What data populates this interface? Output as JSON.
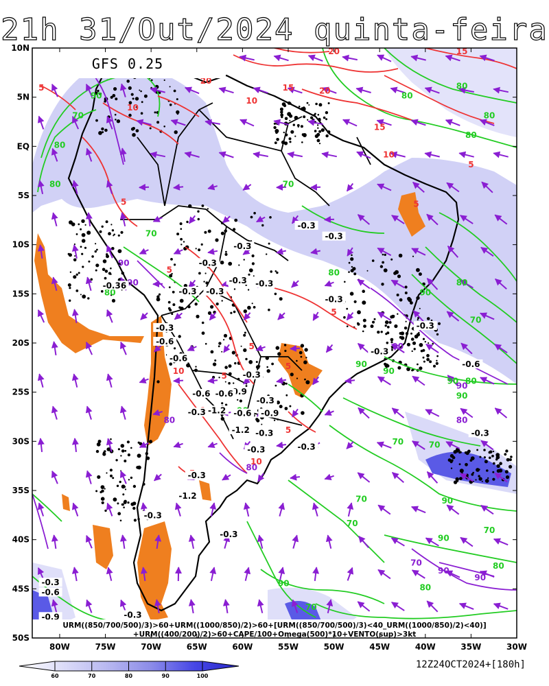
{
  "title": "21h 31/Out/2024 quinta-feira",
  "model_label": "GFS 0.25",
  "valid_stamp": "12Z24OCT2024+[180h]",
  "legend_line1": "URM((850/700/500)/3)>60+URM((1000/850)/2)>60+[URM((850/700/500)/3)<40_URM((1000/850)/2)<40)]",
  "legend_line2": "+URM((400/200)/2)>60+CAPE/100+Omega(500)*10+VENTO(sup)>3kt",
  "lat_ticks": [
    {
      "lat": 10,
      "label": "10N"
    },
    {
      "lat": 5,
      "label": "5N"
    },
    {
      "lat": 0,
      "label": "EQ"
    },
    {
      "lat": -5,
      "label": "5S"
    },
    {
      "lat": -10,
      "label": "10S"
    },
    {
      "lat": -15,
      "label": "15S"
    },
    {
      "lat": -20,
      "label": "20S"
    },
    {
      "lat": -25,
      "label": "25S"
    },
    {
      "lat": -30,
      "label": "30S"
    },
    {
      "lat": -35,
      "label": "35S"
    },
    {
      "lat": -40,
      "label": "40S"
    },
    {
      "lat": -45,
      "label": "45S"
    },
    {
      "lat": -50,
      "label": "50S"
    }
  ],
  "lon_ticks": [
    {
      "lon": -80,
      "label": "80W"
    },
    {
      "lon": -75,
      "label": "75W"
    },
    {
      "lon": -70,
      "label": "70W"
    },
    {
      "lon": -65,
      "label": "65W"
    },
    {
      "lon": -60,
      "label": "60W"
    },
    {
      "lon": -55,
      "label": "55W"
    },
    {
      "lon": -50,
      "label": "50W"
    },
    {
      "lon": -45,
      "label": "45W"
    },
    {
      "lon": -40,
      "label": "40W"
    },
    {
      "lon": -35,
      "label": "35W"
    },
    {
      "lon": -30,
      "label": "30W"
    }
  ],
  "colorbar": {
    "labels": [
      "60",
      "70",
      "80",
      "90",
      "100"
    ],
    "colors": [
      "#ffffff",
      "#dcdcf8",
      "#b8b8f0",
      "#8c8ce8",
      "#4646e6",
      "#2828c8"
    ]
  },
  "colors": {
    "land_outline": "#000000",
    "green_contour": "#22cc22",
    "red_contour": "#ee3333",
    "purple_vector": "#8a1ed2",
    "cape_orange": "#ef7f1f",
    "humidity_shade": "#c8c8f4"
  },
  "omega_labels": [
    {
      "lon": -53.0,
      "lat": -8.2,
      "text": "-0.3"
    },
    {
      "lon": -50.0,
      "lat": -9.3,
      "text": "-0.3"
    },
    {
      "lon": -60.0,
      "lat": -10.3,
      "text": "-0.3"
    },
    {
      "lon": -63.8,
      "lat": -12.0,
      "text": "-0.3"
    },
    {
      "lon": -60.5,
      "lat": -13.8,
      "text": "-0.3"
    },
    {
      "lon": -57.6,
      "lat": -14.1,
      "text": "-0.3"
    },
    {
      "lon": -74.0,
      "lat": -14.3,
      "text": "-0.36"
    },
    {
      "lon": -66.0,
      "lat": -14.9,
      "text": "-0.3"
    },
    {
      "lon": -63.0,
      "lat": -14.9,
      "text": "-0.3"
    },
    {
      "lon": -50.0,
      "lat": -15.7,
      "text": "-0.3"
    },
    {
      "lon": -40.0,
      "lat": -18.4,
      "text": "-0.3"
    },
    {
      "lon": -68.5,
      "lat": -18.6,
      "text": "-0.3"
    },
    {
      "lon": -68.5,
      "lat": -20.0,
      "text": "-0.6"
    },
    {
      "lon": -45.0,
      "lat": -21.0,
      "text": "-0.3"
    },
    {
      "lon": -67.0,
      "lat": -21.7,
      "text": "-0.6"
    },
    {
      "lon": -35.0,
      "lat": -22.3,
      "text": "-0.6"
    },
    {
      "lon": -59.0,
      "lat": -23.4,
      "text": "-0.3"
    },
    {
      "lon": -60.5,
      "lat": -25.1,
      "text": "-0.9"
    },
    {
      "lon": -64.5,
      "lat": -25.3,
      "text": "-0.6"
    },
    {
      "lon": -62.0,
      "lat": -25.3,
      "text": "-0.6"
    },
    {
      "lon": -57.5,
      "lat": -26.0,
      "text": "-0.3"
    },
    {
      "lon": -65.0,
      "lat": -27.2,
      "text": "-0.3"
    },
    {
      "lon": -62.8,
      "lat": -27.0,
      "text": "-1.2"
    },
    {
      "lon": -60.0,
      "lat": -27.3,
      "text": "-0.6"
    },
    {
      "lon": -57.0,
      "lat": -27.3,
      "text": "-0.9"
    },
    {
      "lon": -60.2,
      "lat": -29.0,
      "text": "-1.2"
    },
    {
      "lon": -57.6,
      "lat": -29.3,
      "text": "-0.3"
    },
    {
      "lon": -34.0,
      "lat": -29.3,
      "text": "-0.3"
    },
    {
      "lon": -53.0,
      "lat": -30.7,
      "text": "-0.3"
    },
    {
      "lon": -58.5,
      "lat": -31.0,
      "text": "-0.3"
    },
    {
      "lon": -65.0,
      "lat": -33.6,
      "text": "-0.3"
    },
    {
      "lon": -66.0,
      "lat": -35.7,
      "text": "-1.2"
    },
    {
      "lon": -69.8,
      "lat": -37.7,
      "text": "-0.3"
    },
    {
      "lon": -61.5,
      "lat": -39.6,
      "text": "-0.3"
    },
    {
      "lon": -81.0,
      "lat": -44.5,
      "text": "-0.3"
    },
    {
      "lon": -81.0,
      "lat": -45.5,
      "text": "-0.6"
    },
    {
      "lon": -81.0,
      "lat": -48.0,
      "text": "-0.9"
    },
    {
      "lon": -72.0,
      "lat": -47.8,
      "text": "-0.3"
    }
  ],
  "green_labels": [
    {
      "lon": -80,
      "lat": 0,
      "text": "80"
    },
    {
      "lon": -78,
      "lat": 3,
      "text": "70"
    },
    {
      "lon": -76,
      "lat": 5,
      "text": "90"
    },
    {
      "lon": -80.5,
      "lat": -4,
      "text": "80"
    },
    {
      "lon": -70,
      "lat": -9,
      "text": "70"
    },
    {
      "lon": -74.5,
      "lat": -15,
      "text": "80"
    },
    {
      "lon": -55,
      "lat": -4,
      "text": "70"
    },
    {
      "lon": -50,
      "lat": -13,
      "text": "80"
    },
    {
      "lon": -36,
      "lat": -14,
      "text": "80"
    },
    {
      "lon": -40,
      "lat": -15,
      "text": "90"
    },
    {
      "lon": -34.5,
      "lat": -17.8,
      "text": "70"
    },
    {
      "lon": -44,
      "lat": -23,
      "text": "90"
    },
    {
      "lon": -47,
      "lat": -22.3,
      "text": "90"
    },
    {
      "lon": -37,
      "lat": -24,
      "text": "90"
    },
    {
      "lon": -35,
      "lat": -24,
      "text": "80"
    },
    {
      "lon": -36,
      "lat": -25.5,
      "text": "90"
    },
    {
      "lon": -39,
      "lat": -30.5,
      "text": "70"
    },
    {
      "lon": -37.6,
      "lat": -36.2,
      "text": "90"
    },
    {
      "lon": -47,
      "lat": -36,
      "text": "70"
    },
    {
      "lon": -33,
      "lat": -39.2,
      "text": "70"
    },
    {
      "lon": -48,
      "lat": -38.5,
      "text": "70"
    },
    {
      "lon": -32,
      "lat": -42.8,
      "text": "80"
    },
    {
      "lon": -40,
      "lat": -45,
      "text": "80"
    },
    {
      "lon": -55.5,
      "lat": -44.6,
      "text": "90"
    },
    {
      "lon": -52.5,
      "lat": -47,
      "text": "70"
    },
    {
      "lon": -38,
      "lat": -40,
      "text": "90"
    },
    {
      "lon": -43,
      "lat": -30.2,
      "text": "70"
    },
    {
      "lon": -42,
      "lat": 5,
      "text": "80"
    },
    {
      "lon": -35,
      "lat": 1,
      "text": "80"
    },
    {
      "lon": -36,
      "lat": 6,
      "text": "80"
    },
    {
      "lon": -33,
      "lat": 3,
      "text": "80"
    },
    {
      "lon": -60,
      "lat": -27,
      "text": "90"
    }
  ],
  "red_labels": [
    {
      "lon": -50,
      "lat": 9.5,
      "text": "20"
    },
    {
      "lon": -36,
      "lat": 9.5,
      "text": "15"
    },
    {
      "lon": -64,
      "lat": 6.5,
      "text": "20"
    },
    {
      "lon": -51,
      "lat": 5.5,
      "text": "20"
    },
    {
      "lon": -55,
      "lat": 5.8,
      "text": "15"
    },
    {
      "lon": -82,
      "lat": 5.8,
      "text": "5"
    },
    {
      "lon": -59,
      "lat": 4.5,
      "text": "10"
    },
    {
      "lon": -72,
      "lat": 3.8,
      "text": "10"
    },
    {
      "lon": -45,
      "lat": 1.8,
      "text": "15"
    },
    {
      "lon": -44,
      "lat": -1,
      "text": "10"
    },
    {
      "lon": -73,
      "lat": -5.8,
      "text": "5"
    },
    {
      "lon": -68,
      "lat": -12.7,
      "text": "5"
    },
    {
      "lon": -57,
      "lat": -14.1,
      "text": "5"
    },
    {
      "lon": -50,
      "lat": -17,
      "text": "5"
    },
    {
      "lon": -59,
      "lat": -20.5,
      "text": "5"
    },
    {
      "lon": -67,
      "lat": -23,
      "text": "10"
    },
    {
      "lon": -62,
      "lat": -23.5,
      "text": "5"
    },
    {
      "lon": -64,
      "lat": -27,
      "text": "10"
    },
    {
      "lon": -55,
      "lat": -29,
      "text": "5"
    },
    {
      "lon": -58.5,
      "lat": -32.2,
      "text": "10"
    },
    {
      "lon": -65.5,
      "lat": -33.4,
      "text": "5"
    },
    {
      "lon": -35,
      "lat": -2,
      "text": "5"
    },
    {
      "lon": -55,
      "lat": -22.5,
      "text": "5"
    },
    {
      "lon": -41,
      "lat": -6,
      "text": "5"
    }
  ],
  "purple_labels": [
    {
      "lon": -72,
      "lat": -14,
      "text": "90"
    },
    {
      "lon": -43,
      "lat": -20.5,
      "text": "90"
    },
    {
      "lon": -36,
      "lat": -24.5,
      "text": "90"
    },
    {
      "lon": -36,
      "lat": -28,
      "text": "80"
    },
    {
      "lon": -41,
      "lat": -42.5,
      "text": "70"
    },
    {
      "lon": -38,
      "lat": -43.3,
      "text": "90"
    },
    {
      "lon": -34,
      "lat": -44,
      "text": "90"
    },
    {
      "lon": -59,
      "lat": -32.8,
      "text": "80"
    },
    {
      "lon": -68,
      "lat": -28,
      "text": "80"
    },
    {
      "lon": -73,
      "lat": -12,
      "text": "90"
    }
  ]
}
